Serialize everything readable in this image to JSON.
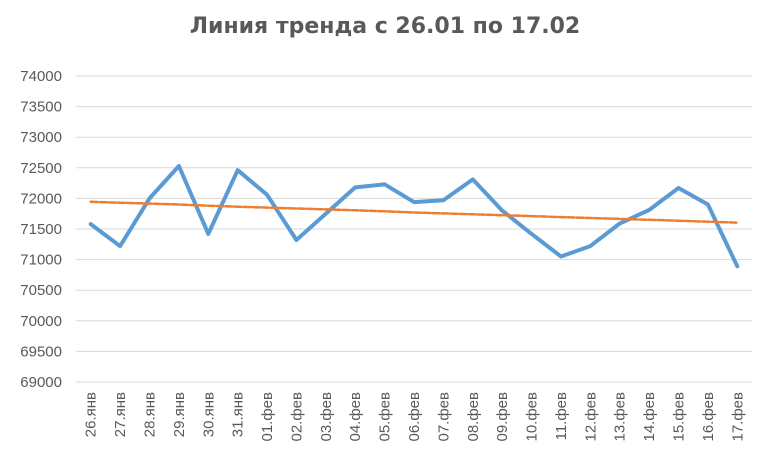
{
  "chart_data": {
    "type": "line",
    "title": "Линия тренда с 26.01 по 17.02",
    "xlabel": "",
    "ylabel": "",
    "ylim": [
      69000,
      74000
    ],
    "yticks": [
      69000,
      69500,
      70000,
      70500,
      71000,
      71500,
      72000,
      72500,
      73000,
      73500,
      74000
    ],
    "grid": true,
    "legend": "none",
    "categories": [
      "26.янв",
      "27.янв",
      "28.янв",
      "29.янв",
      "30.янв",
      "31.янв",
      "01.фев",
      "02.фев",
      "03.фев",
      "04.фев",
      "05.фев",
      "06.фев",
      "07.фев",
      "08.фев",
      "09.фев",
      "10.фев",
      "11.фев",
      "12.фев",
      "13.фев",
      "14.фев",
      "15.фев",
      "16.фев",
      "17.фев"
    ],
    "series": [
      {
        "color": "#5B9BD5",
        "values": [
          71580,
          71220,
          72000,
          72530,
          71420,
          72460,
          72060,
          71320,
          71750,
          72180,
          72230,
          71940,
          71970,
          72310,
          71800,
          71420,
          71050,
          71220,
          71590,
          71810,
          72170,
          71900,
          70890
        ]
      },
      {
        "color": "#ED7D31",
        "style": "trendline",
        "values": [
          71945,
          71930,
          71915,
          71900,
          71880,
          71865,
          71850,
          71835,
          71820,
          71805,
          71790,
          71770,
          71755,
          71740,
          71725,
          71710,
          71695,
          71680,
          71665,
          71650,
          71635,
          71620,
          71605
        ]
      }
    ]
  }
}
